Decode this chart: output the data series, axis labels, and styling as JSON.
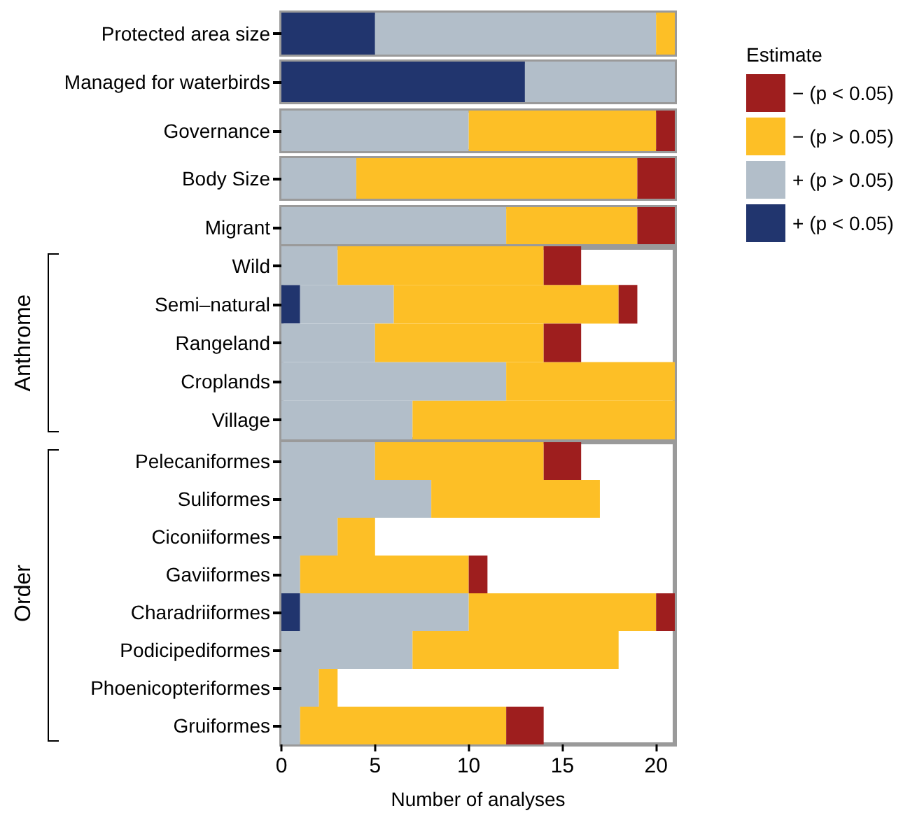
{
  "chart_data": [
    {
      "type": "bar",
      "orientation": "horizontal",
      "stacked": true,
      "legend": "right",
      "legend_title": "Estimate",
      "categories": [
        "Protected area size"
      ],
      "xlim": [
        0,
        21
      ],
      "xticks": [
        0,
        5,
        10,
        15,
        20
      ],
      "tick_labels": "y",
      "series": [
        {
          "name": "+ (p < 0.05)",
          "color": "#21356e",
          "values": [
            5
          ]
        },
        {
          "name": "+ (p > 0.05)",
          "color": "#b2bec9",
          "values": [
            15
          ]
        },
        {
          "name": "− (p > 0.05)",
          "color": "#fdbf26",
          "values": [
            1
          ]
        },
        {
          "name": "− (p < 0.05)",
          "color": "#9e1e1e",
          "values": [
            0
          ]
        }
      ]
    },
    {
      "type": "bar",
      "orientation": "horizontal",
      "stacked": true,
      "categories": [
        "Managed for waterbirds"
      ],
      "xlim": [
        0,
        21
      ],
      "xticks": [
        0,
        5,
        10,
        15,
        20
      ],
      "tick_labels": "y",
      "series": [
        {
          "color": "#21356e",
          "values": [
            13
          ]
        },
        {
          "color": "#b2bec9",
          "values": [
            8
          ]
        },
        {
          "color": "#fdbf26",
          "values": [
            0
          ]
        },
        {
          "color": "#9e1e1e",
          "values": [
            0
          ]
        }
      ]
    },
    {
      "type": "bar",
      "orientation": "horizontal",
      "stacked": true,
      "categories": [
        "Governance"
      ],
      "xlim": [
        0,
        21
      ],
      "xticks": [
        0,
        5,
        10,
        15,
        20
      ],
      "tick_labels": "y",
      "series": [
        {
          "color": "#21356e",
          "values": [
            0
          ]
        },
        {
          "color": "#b2bec9",
          "values": [
            10
          ]
        },
        {
          "color": "#fdbf26",
          "values": [
            10
          ]
        },
        {
          "color": "#9e1e1e",
          "values": [
            1
          ]
        }
      ]
    },
    {
      "type": "bar",
      "orientation": "horizontal",
      "stacked": true,
      "categories": [
        "Body Size"
      ],
      "xlim": [
        0,
        21
      ],
      "xticks": [
        0,
        5,
        10,
        15,
        20
      ],
      "tick_labels": "y",
      "series": [
        {
          "color": "#21356e",
          "values": [
            0
          ]
        },
        {
          "color": "#b2bec9",
          "values": [
            4
          ]
        },
        {
          "color": "#fdbf26",
          "values": [
            15
          ]
        },
        {
          "color": "#9e1e1e",
          "values": [
            2
          ]
        }
      ]
    },
    {
      "type": "bar",
      "orientation": "horizontal",
      "stacked": true,
      "categories": [
        "Migrant"
      ],
      "xlim": [
        0,
        21
      ],
      "xticks": [
        0,
        5,
        10,
        15,
        20
      ],
      "tick_labels": "y",
      "series": [
        {
          "color": "#21356e",
          "values": [
            0
          ]
        },
        {
          "color": "#b2bec9",
          "values": [
            12
          ]
        },
        {
          "color": "#fdbf26",
          "values": [
            7
          ]
        },
        {
          "color": "#9e1e1e",
          "values": [
            2
          ]
        }
      ]
    },
    {
      "type": "bar",
      "orientation": "horizontal",
      "stacked": true,
      "ylabel": "Anthrome",
      "categories": [
        "Wild",
        "Semi–natural",
        "Rangeland",
        "Croplands",
        "Village"
      ],
      "xlim": [
        0,
        21
      ],
      "xticks": [
        0,
        5,
        10,
        15,
        20
      ],
      "tick_labels": "y",
      "series": [
        {
          "color": "#21356e",
          "values": [
            0,
            1,
            0,
            0,
            0
          ]
        },
        {
          "color": "#b2bec9",
          "values": [
            3,
            5,
            5,
            12,
            7
          ]
        },
        {
          "color": "#fdbf26",
          "values": [
            11,
            12,
            9,
            9,
            14
          ]
        },
        {
          "color": "#9e1e1e",
          "values": [
            2,
            1,
            2,
            0,
            0
          ]
        }
      ]
    },
    {
      "type": "bar",
      "orientation": "horizontal",
      "stacked": true,
      "ylabel": "Order",
      "xlabel": "Number of analyses",
      "categories": [
        "Pelecaniformes",
        "Suliformes",
        "Ciconiiformes",
        "Gaviiformes",
        "Charadriiformes",
        "Podicipediformes",
        "Phoenicopteriformes",
        "Gruiformes"
      ],
      "xlim": [
        0,
        21
      ],
      "xticks": [
        0,
        5,
        10,
        15,
        20
      ],
      "series": [
        {
          "color": "#21356e",
          "values": [
            0,
            0,
            0,
            0,
            1,
            0,
            0,
            0
          ]
        },
        {
          "color": "#b2bec9",
          "values": [
            5,
            8,
            3,
            1,
            9,
            7,
            2,
            1
          ]
        },
        {
          "color": "#fdbf26",
          "values": [
            9,
            9,
            2,
            9,
            10,
            11,
            1,
            11
          ]
        },
        {
          "color": "#9e1e1e",
          "values": [
            2,
            0,
            0,
            1,
            1,
            0,
            0,
            2
          ]
        }
      ]
    }
  ]
}
